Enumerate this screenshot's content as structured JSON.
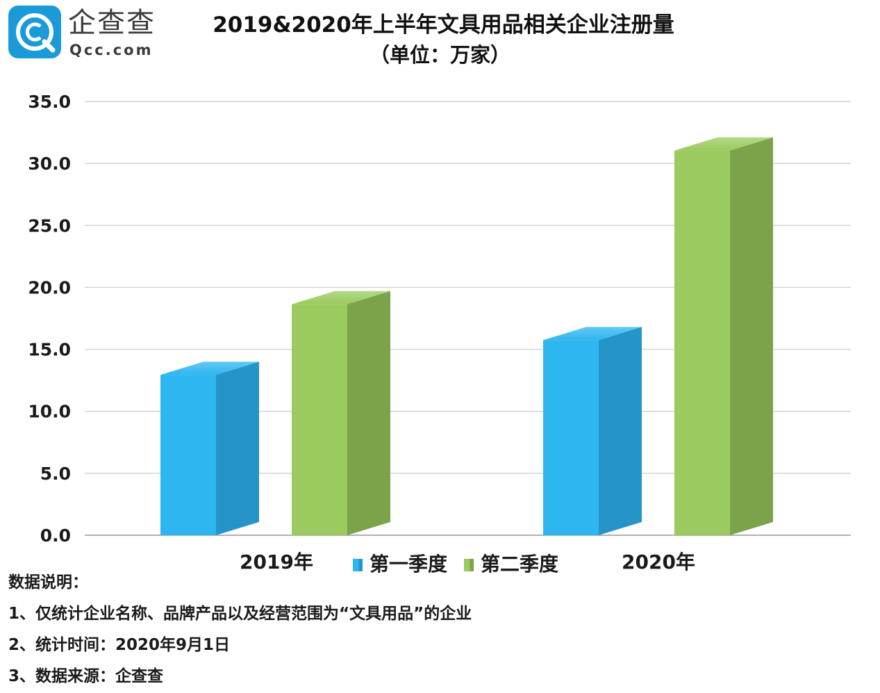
{
  "logo": {
    "name": "企查查",
    "domain": "Qcc.com",
    "color": "#1a9bd7"
  },
  "title": {
    "main": "2019&2020年上半年文具用品相关企业注册量",
    "sub": "（单位：万家）"
  },
  "chart_data": {
    "type": "bar",
    "style": "3d-column",
    "categories": [
      "2019年",
      "2020年"
    ],
    "series": [
      {
        "name": "第一季度",
        "values": [
          13.5,
          16.3
        ],
        "color": "#2eb6f0",
        "side_color": "#2594c8"
      },
      {
        "name": "第二季度",
        "values": [
          19.2,
          31.6
        ],
        "color": "#9bcb5e",
        "side_color": "#7ba34a"
      }
    ],
    "ylim": [
      0,
      35
    ],
    "yticks": [
      "0.0",
      "5.0",
      "10.0",
      "15.0",
      "20.0",
      "25.0",
      "30.0",
      "35.0"
    ],
    "grid": true,
    "legend_position": "bottom-center"
  },
  "notes": {
    "heading": "数据说明：",
    "lines": [
      "1、仅统计企业名称、品牌产品以及经营范围为“文具用品”的企业",
      "2、统计时间：2020年9月1日",
      "3、数据来源：企查查"
    ]
  }
}
